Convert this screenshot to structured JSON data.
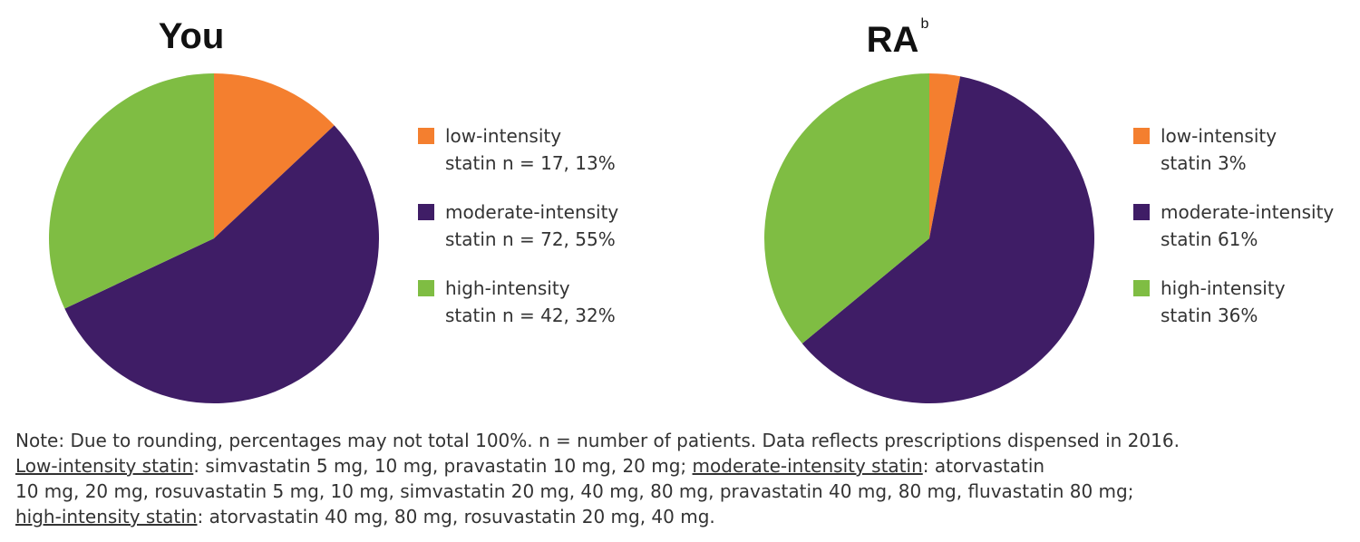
{
  "chart_data": [
    {
      "type": "pie",
      "title": "You",
      "categories": [
        "low-intensity statin",
        "moderate-intensity statin",
        "high-intensity statin"
      ],
      "values": [
        13,
        55,
        32
      ],
      "value_labels": [
        "n = 17, 13%",
        "n = 72, 55%",
        "n = 42, 32%"
      ],
      "colors": [
        "#f47f2f",
        "#3f1d66",
        "#7fbd43"
      ]
    },
    {
      "type": "pie",
      "title": "RA",
      "title_superscript": "b",
      "categories": [
        "low-intensity statin",
        "moderate-intensity statin",
        "high-intensity statin"
      ],
      "values": [
        3,
        61,
        36
      ],
      "value_labels": [
        "3%",
        "61%",
        "36%"
      ],
      "colors": [
        "#f47f2f",
        "#3f1d66",
        "#7fbd43"
      ]
    }
  ],
  "note": [
    [
      {
        "text": "Note: Due to rounding, percentages may not total 100%. n = number of patients. Data reflects prescriptions dispensed in 2016.",
        "underline": false
      }
    ],
    [
      {
        "text": "Low-intensity statin",
        "underline": true
      },
      {
        "text": ": simvastatin 5 mg, 10 mg, pravastatin 10 mg, 20 mg; ",
        "underline": false
      },
      {
        "text": "moderate-intensity statin",
        "underline": true
      },
      {
        "text": ": atorvastatin",
        "underline": false
      }
    ],
    [
      {
        "text": "10 mg, 20 mg, rosuvastatin 5 mg, 10 mg, simvastatin 20 mg, 40 mg, 80 mg, pravastatin 40 mg, 80 mg, fluvastatin 80 mg;",
        "underline": false
      }
    ],
    [
      {
        "text": "high-intensity statin",
        "underline": true
      },
      {
        "text": ": atorvastatin 40 mg, 80 mg, rosuvastatin 20 mg, 40 mg.",
        "underline": false
      }
    ]
  ]
}
